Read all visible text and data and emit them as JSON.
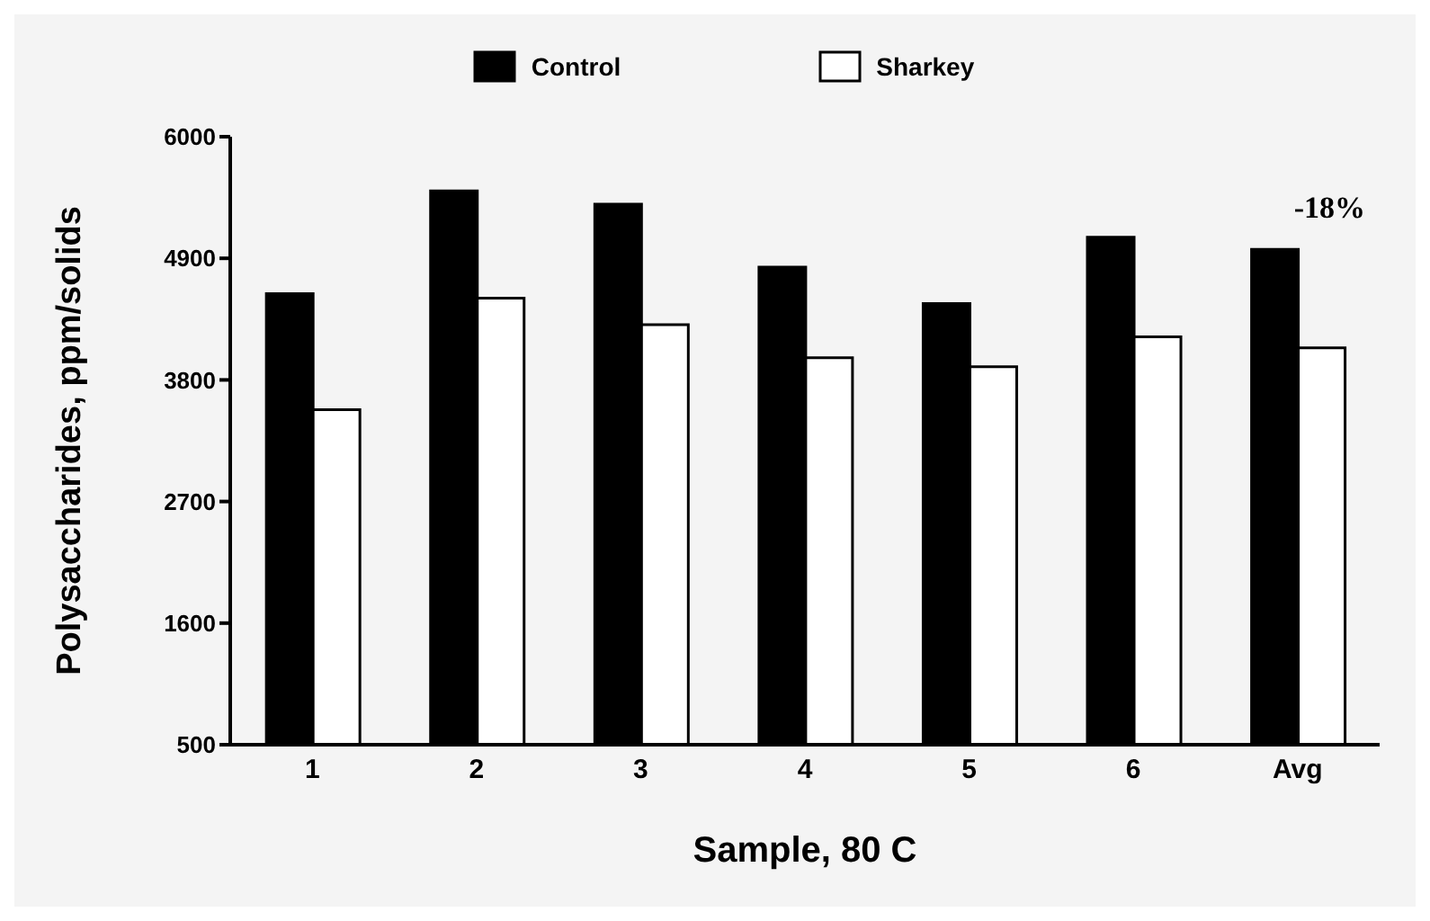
{
  "chart_data": {
    "type": "bar",
    "xlabel": "Sample, 80 C",
    "ylabel": "Polysaccharides, ppm/solids",
    "categories": [
      "1",
      "2",
      "3",
      "4",
      "5",
      "6",
      "Avg"
    ],
    "series": [
      {
        "name": "Control",
        "color": "#000000",
        "values": [
          4580,
          5510,
          5390,
          4820,
          4490,
          5090,
          4980
        ]
      },
      {
        "name": "Sharkey",
        "color": "#ffffff",
        "values": [
          3530,
          4540,
          4300,
          4000,
          3920,
          4190,
          4090
        ]
      }
    ],
    "ylim": [
      500,
      6000
    ],
    "yticks": [
      500,
      1600,
      2700,
      3800,
      4900,
      6000
    ],
    "grid": false,
    "legend": "top",
    "annotations": [
      "-18%"
    ]
  }
}
